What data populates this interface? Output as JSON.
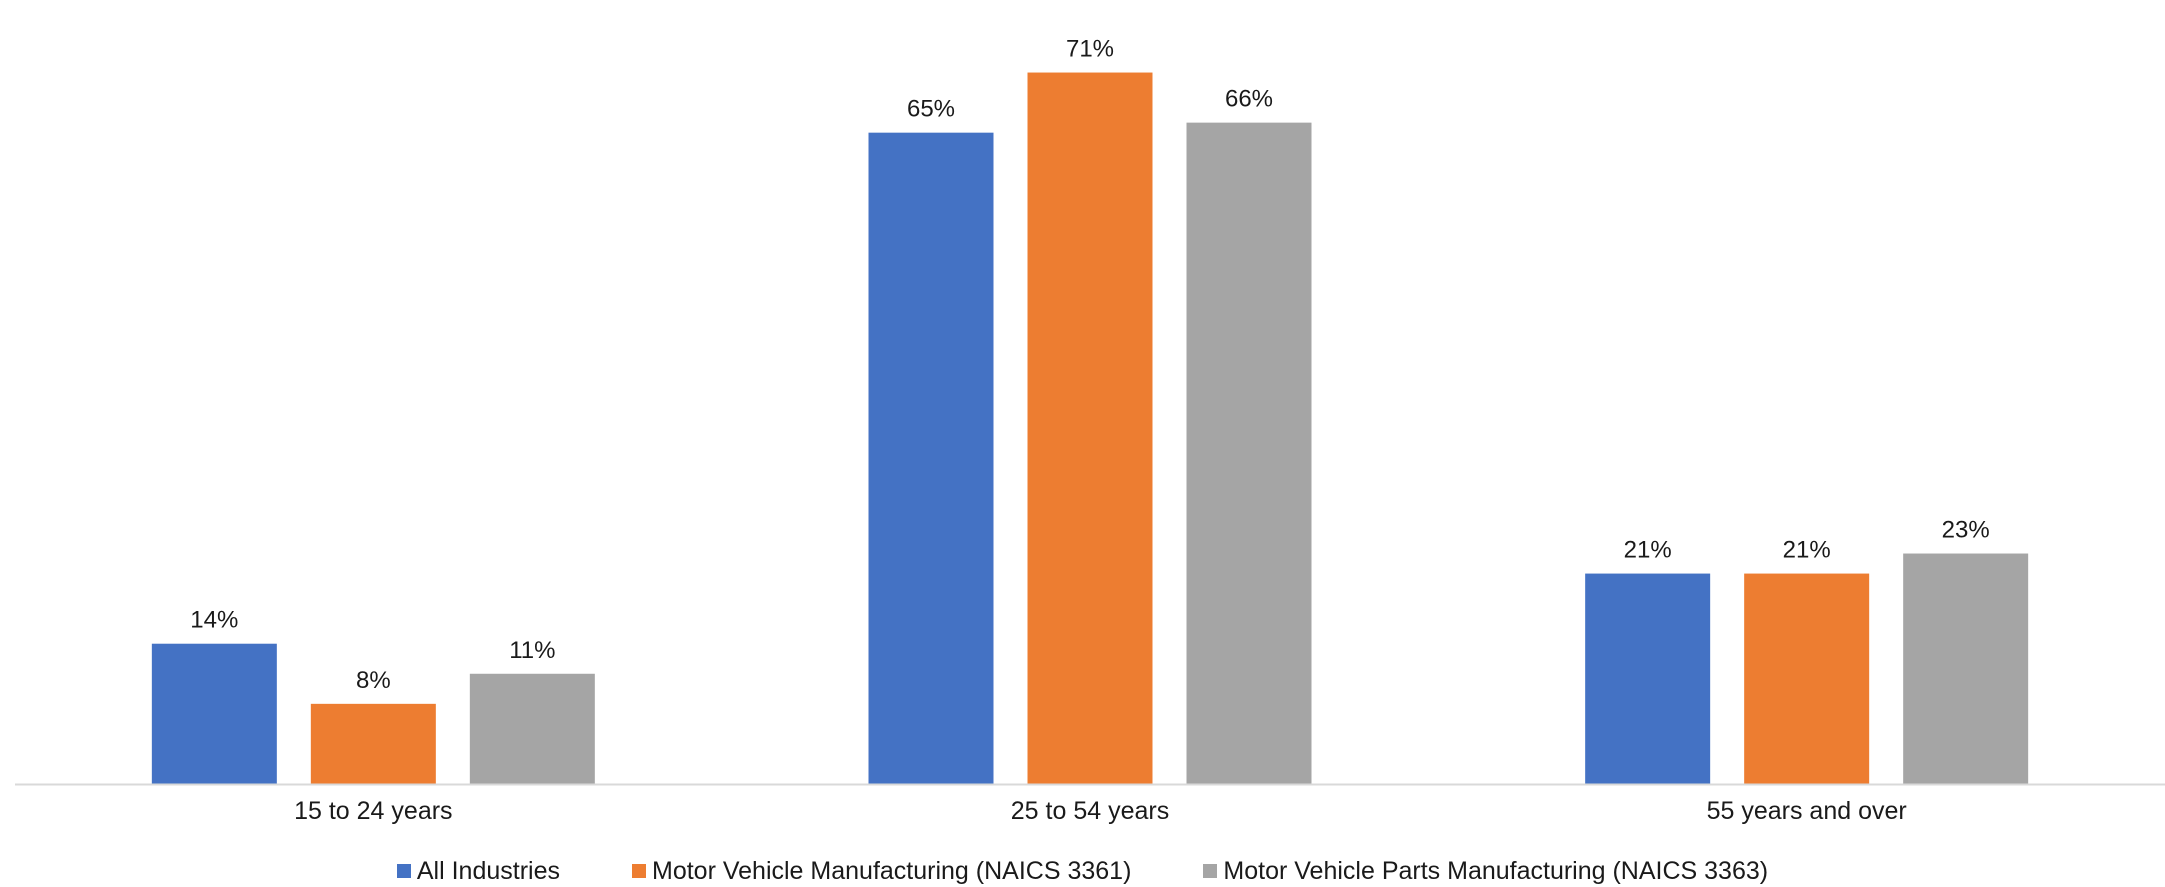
{
  "chart_data": {
    "type": "bar",
    "categories": [
      "15 to 24 years",
      "25 to 54 years",
      "55 years and over"
    ],
    "series": [
      {
        "name": "All Industries",
        "values": [
          14,
          65,
          21
        ],
        "labels": [
          "14%",
          "65%",
          "21%"
        ],
        "color": "#4472C4"
      },
      {
        "name": "Motor Vehicle Manufacturing (NAICS 3361)",
        "values": [
          8,
          71,
          21
        ],
        "labels": [
          "8%",
          "71%",
          "21%"
        ],
        "color": "#ED7D31"
      },
      {
        "name": "Motor Vehicle Parts Manufacturing (NAICS 3363)",
        "values": [
          11,
          66,
          23
        ],
        "labels": [
          "11%",
          "66%",
          "23%"
        ],
        "color": "#A5A5A5"
      }
    ],
    "title": "",
    "xlabel": "",
    "ylabel": "",
    "ylim": [
      0,
      75
    ],
    "grid": false,
    "legend_position": "bottom",
    "axis_color": "#d9d9d9"
  }
}
